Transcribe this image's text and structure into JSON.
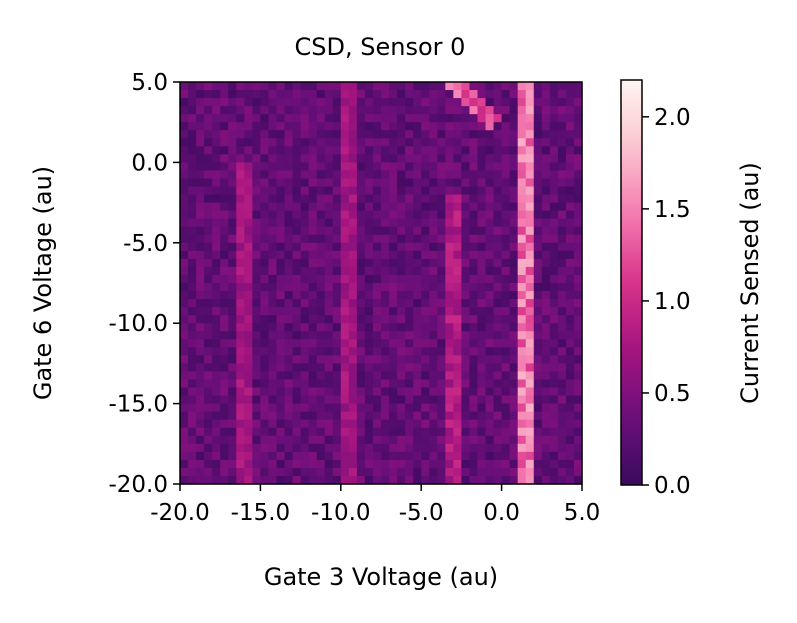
{
  "chart_data": {
    "type": "heatmap",
    "title": "CSD, Sensor 0",
    "xlabel": "Gate 3 Voltage (au)",
    "ylabel": "Gate 6 Voltage (au)",
    "xlim": [
      -20.0,
      5.0
    ],
    "ylim": [
      -20.0,
      5.0
    ],
    "x_ticks": [
      -20.0,
      -15.0,
      -10.0,
      -5.0,
      0.0,
      5.0
    ],
    "x_tick_labels": [
      "-20.0",
      "-15.0",
      "-10.0",
      "-5.0",
      "0.0",
      "5.0"
    ],
    "y_ticks": [
      -20.0,
      -15.0,
      -10.0,
      -5.0,
      0.0,
      5.0
    ],
    "y_tick_labels": [
      "-20.0",
      "-15.0",
      "-10.0",
      "-5.0",
      "0.0",
      "5.0"
    ],
    "grid": {
      "cols": 50,
      "rows": 50
    },
    "colormap": "RdPu_r",
    "colormap_stops": [
      "#3b0a5e",
      "#6b0f7a",
      "#a4147f",
      "#d8338a",
      "#f47ab0",
      "#fbc4cf",
      "#fff5f0"
    ],
    "colorbar": {
      "label": "Current Sensed (au)",
      "range": [
        0.0,
        2.2
      ],
      "ticks": [
        0.0,
        0.5,
        1.0,
        1.5,
        2.0
      ],
      "tick_labels": [
        "0.0",
        "0.5",
        "1.0",
        "1.5",
        "2.0"
      ]
    },
    "background_level": 0.35,
    "features": [
      {
        "type": "vertical-line",
        "x": 1.5,
        "y_range": [
          -20.0,
          5.0
        ],
        "value": 1.6
      },
      {
        "type": "vertical-line",
        "x": -3.0,
        "y_range": [
          -20.0,
          -2.0
        ],
        "value": 0.9
      },
      {
        "type": "vertical-line",
        "x": -9.5,
        "y_range": [
          -20.0,
          5.0
        ],
        "value": 0.8
      },
      {
        "type": "vertical-line",
        "x": -16.0,
        "y_range": [
          -20.0,
          0.0
        ],
        "value": 0.8
      },
      {
        "type": "diagonal-line",
        "from": [
          -3.0,
          5.0
        ],
        "to": [
          -0.5,
          2.5
        ],
        "value": 1.4
      }
    ]
  }
}
